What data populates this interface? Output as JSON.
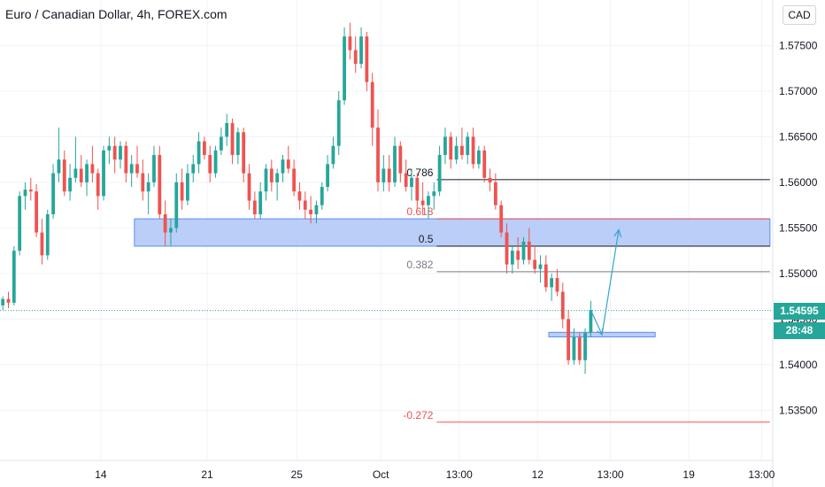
{
  "title": "Euro / Canadian Dollar, 4h, FOREX.com",
  "currency": "CAD",
  "last_price": "1.54595",
  "countdown": "28:48",
  "colors": {
    "up": "#26a69a",
    "down": "#ef5350",
    "zone": "#aec6f7",
    "zone_border": "#5b8def",
    "fib_black": "#131722",
    "fib_red": "#ef5350",
    "fib_gray": "#787b86",
    "arrow": "#3aa3cf",
    "price_line": "#26a69a"
  },
  "chart_data": {
    "type": "candlestick",
    "symbol": "EURCAD",
    "timeframe": "4h",
    "ylim": [
      1.5295,
      1.58
    ],
    "xlim": [
      0,
      138
    ],
    "y_ticks": [
      "1.53500",
      "1.54000",
      "1.54500",
      "1.55000",
      "1.55500",
      "1.56000",
      "1.56500",
      "1.57000",
      "1.57500"
    ],
    "y_tick_values": [
      1.535,
      1.54,
      1.545,
      1.55,
      1.555,
      1.56,
      1.565,
      1.57,
      1.575
    ],
    "x_ticks": [
      {
        "label": "14",
        "x": 18
      },
      {
        "label": "21",
        "x": 37
      },
      {
        "label": "25",
        "x": 53
      },
      {
        "label": "Oct",
        "x": 68
      },
      {
        "label": "13:00",
        "x": 82
      },
      {
        "label": "12",
        "x": 96
      },
      {
        "label": "13:00",
        "x": 109
      },
      {
        "label": "19",
        "x": 123
      },
      {
        "label": "13:00",
        "x": 136
      }
    ],
    "candles": [
      [
        1.5465,
        1.5475,
        1.546,
        1.5472
      ],
      [
        1.5472,
        1.548,
        1.5462,
        1.5468
      ],
      [
        1.5468,
        1.553,
        1.5465,
        1.5525
      ],
      [
        1.5525,
        1.559,
        1.552,
        1.5585
      ],
      [
        1.5585,
        1.56,
        1.557,
        1.5592
      ],
      [
        1.5592,
        1.5605,
        1.558,
        1.559
      ],
      [
        1.559,
        1.5598,
        1.554,
        1.5545
      ],
      [
        1.5545,
        1.556,
        1.551,
        1.552
      ],
      [
        1.552,
        1.557,
        1.5515,
        1.5565
      ],
      [
        1.5565,
        1.562,
        1.556,
        1.561
      ],
      [
        1.561,
        1.566,
        1.56,
        1.5625
      ],
      [
        1.5625,
        1.5635,
        1.5585,
        1.559
      ],
      [
        1.559,
        1.562,
        1.558,
        1.5605
      ],
      [
        1.5605,
        1.565,
        1.56,
        1.5615
      ],
      [
        1.5615,
        1.563,
        1.5595,
        1.56
      ],
      [
        1.56,
        1.5625,
        1.5585,
        1.562
      ],
      [
        1.562,
        1.564,
        1.56,
        1.561
      ],
      [
        1.561,
        1.5615,
        1.557,
        1.5585
      ],
      [
        1.5585,
        1.564,
        1.558,
        1.5635
      ],
      [
        1.5635,
        1.565,
        1.562,
        1.564
      ],
      [
        1.564,
        1.565,
        1.561,
        1.5625
      ],
      [
        1.5625,
        1.5645,
        1.5615,
        1.564
      ],
      [
        1.564,
        1.5645,
        1.56,
        1.561
      ],
      [
        1.561,
        1.563,
        1.5595,
        1.562
      ],
      [
        1.562,
        1.564,
        1.5605,
        1.561
      ],
      [
        1.561,
        1.5625,
        1.558,
        1.559
      ],
      [
        1.559,
        1.561,
        1.5565,
        1.56
      ],
      [
        1.56,
        1.564,
        1.5595,
        1.563
      ],
      [
        1.563,
        1.564,
        1.556,
        1.5565
      ],
      [
        1.5565,
        1.558,
        1.553,
        1.5545
      ],
      [
        1.5545,
        1.556,
        1.553,
        1.555
      ],
      [
        1.555,
        1.561,
        1.5545,
        1.56
      ],
      [
        1.56,
        1.5615,
        1.557,
        1.558
      ],
      [
        1.558,
        1.562,
        1.5575,
        1.561
      ],
      [
        1.561,
        1.563,
        1.56,
        1.562
      ],
      [
        1.562,
        1.5655,
        1.561,
        1.5645
      ],
      [
        1.5645,
        1.565,
        1.5625,
        1.563
      ],
      [
        1.563,
        1.564,
        1.56,
        1.561
      ],
      [
        1.561,
        1.564,
        1.5605,
        1.5635
      ],
      [
        1.5635,
        1.566,
        1.563,
        1.565
      ],
      [
        1.565,
        1.5675,
        1.564,
        1.5665
      ],
      [
        1.5665,
        1.567,
        1.562,
        1.563
      ],
      [
        1.563,
        1.566,
        1.562,
        1.5655
      ],
      [
        1.5655,
        1.566,
        1.56,
        1.561
      ],
      [
        1.561,
        1.562,
        1.557,
        1.558
      ],
      [
        1.558,
        1.559,
        1.556,
        1.5565
      ],
      [
        1.5565,
        1.56,
        1.556,
        1.559
      ],
      [
        1.559,
        1.562,
        1.558,
        1.5615
      ],
      [
        1.5615,
        1.5625,
        1.559,
        1.56
      ],
      [
        1.56,
        1.5615,
        1.558,
        1.561
      ],
      [
        1.561,
        1.563,
        1.56,
        1.5625
      ],
      [
        1.5625,
        1.564,
        1.561,
        1.5615
      ],
      [
        1.5615,
        1.5625,
        1.5585,
        1.559
      ],
      [
        1.559,
        1.56,
        1.557,
        1.558
      ],
      [
        1.558,
        1.559,
        1.556,
        1.557
      ],
      [
        1.557,
        1.5585,
        1.5555,
        1.5565
      ],
      [
        1.5565,
        1.558,
        1.5555,
        1.5575
      ],
      [
        1.5575,
        1.56,
        1.557,
        1.5595
      ],
      [
        1.5595,
        1.563,
        1.559,
        1.562
      ],
      [
        1.562,
        1.565,
        1.5615,
        1.564
      ],
      [
        1.564,
        1.57,
        1.563,
        1.569
      ],
      [
        1.569,
        1.577,
        1.5685,
        1.576
      ],
      [
        1.576,
        1.5775,
        1.5735,
        1.5745
      ],
      [
        1.5745,
        1.576,
        1.572,
        1.573
      ],
      [
        1.573,
        1.577,
        1.5725,
        1.576
      ],
      [
        1.576,
        1.5765,
        1.57,
        1.571
      ],
      [
        1.571,
        1.572,
        1.564,
        1.566
      ],
      [
        1.566,
        1.568,
        1.559,
        1.56
      ],
      [
        1.56,
        1.563,
        1.559,
        1.5615
      ],
      [
        1.5615,
        1.563,
        1.559,
        1.56
      ],
      [
        1.56,
        1.565,
        1.5595,
        1.564
      ],
      [
        1.564,
        1.5645,
        1.56,
        1.561
      ],
      [
        1.561,
        1.5625,
        1.559,
        1.5595
      ],
      [
        1.5595,
        1.5615,
        1.558,
        1.5605
      ],
      [
        1.5605,
        1.561,
        1.557,
        1.558
      ],
      [
        1.558,
        1.56,
        1.5565,
        1.5575
      ],
      [
        1.5575,
        1.559,
        1.556,
        1.5585
      ],
      [
        1.5585,
        1.56,
        1.557,
        1.559
      ],
      [
        1.559,
        1.564,
        1.5585,
        1.563
      ],
      [
        1.563,
        1.566,
        1.562,
        1.565
      ],
      [
        1.565,
        1.5655,
        1.5615,
        1.5625
      ],
      [
        1.5625,
        1.565,
        1.562,
        1.564
      ],
      [
        1.564,
        1.566,
        1.5625,
        1.563
      ],
      [
        1.563,
        1.5655,
        1.562,
        1.565
      ],
      [
        1.565,
        1.566,
        1.5615,
        1.562
      ],
      [
        1.562,
        1.564,
        1.5615,
        1.5635
      ],
      [
        1.5635,
        1.564,
        1.56,
        1.5605
      ],
      [
        1.5605,
        1.5615,
        1.559,
        1.56
      ],
      [
        1.56,
        1.561,
        1.557,
        1.5575
      ],
      [
        1.5575,
        1.558,
        1.554,
        1.5545
      ],
      [
        1.5545,
        1.5555,
        1.55,
        1.551
      ],
      [
        1.551,
        1.553,
        1.55,
        1.5525
      ],
      [
        1.5525,
        1.554,
        1.5505,
        1.5515
      ],
      [
        1.5515,
        1.554,
        1.551,
        1.5535
      ],
      [
        1.5535,
        1.555,
        1.551,
        1.5515
      ],
      [
        1.5515,
        1.553,
        1.55,
        1.5505
      ],
      [
        1.5505,
        1.552,
        1.549,
        1.551
      ],
      [
        1.551,
        1.552,
        1.548,
        1.5485
      ],
      [
        1.5485,
        1.55,
        1.547,
        1.5495
      ],
      [
        1.5495,
        1.5505,
        1.5475,
        1.548
      ],
      [
        1.548,
        1.549,
        1.544,
        1.545
      ],
      [
        1.545,
        1.546,
        1.54,
        1.5405
      ],
      [
        1.5405,
        1.544,
        1.54,
        1.543
      ],
      [
        1.543,
        1.5435,
        1.54,
        1.5405
      ],
      [
        1.5405,
        1.544,
        1.539,
        1.5435
      ],
      [
        1.5435,
        1.547,
        1.543,
        1.546
      ]
    ],
    "candle_x_start": 0.5,
    "candle_x_step": 1,
    "zones": [
      {
        "from_x": 24,
        "to_x": 137.5,
        "top": 1.556,
        "bottom": 1.553
      },
      {
        "from_x": 98,
        "to_x": 117,
        "top": 1.54355,
        "bottom": 1.54305
      }
    ],
    "fib_levels": [
      {
        "label": "0.786",
        "value": 1.5603,
        "color": "black"
      },
      {
        "label": "0.618",
        "value": 1.556,
        "color": "red"
      },
      {
        "label": "0.5",
        "value": 1.553,
        "color": "black"
      },
      {
        "label": "0.382",
        "value": 1.5502,
        "color": "gray"
      },
      {
        "label": "-0.272",
        "value": 1.5337,
        "color": "red"
      }
    ],
    "fib_from_x": 78,
    "fib_to_x": 137.5,
    "projection": [
      {
        "x": 105.5,
        "y": 1.546
      },
      {
        "x": 107.5,
        "y": 1.5433
      },
      {
        "x": 110.5,
        "y": 1.5548
      }
    ],
    "current_price": 1.54595
  }
}
